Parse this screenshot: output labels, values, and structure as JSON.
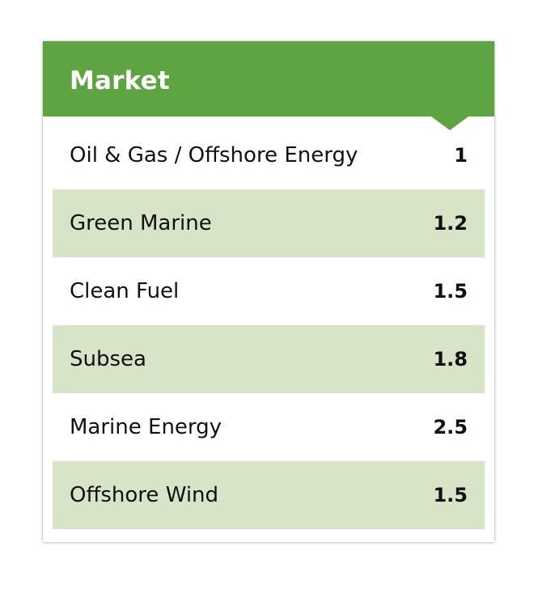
{
  "table": {
    "header": "Market",
    "accent_color": "#5fa443",
    "stripe_color": "#d7e4c7",
    "rows": [
      {
        "label": "Oil & Gas / Offshore Energy",
        "value": "1"
      },
      {
        "label": "Green Marine",
        "value": "1.2"
      },
      {
        "label": "Clean Fuel",
        "value": "1.5"
      },
      {
        "label": "Subsea",
        "value": "1.8"
      },
      {
        "label": "Marine Energy",
        "value": "2.5"
      },
      {
        "label": "Offshore Wind",
        "value": "1.5"
      }
    ]
  }
}
